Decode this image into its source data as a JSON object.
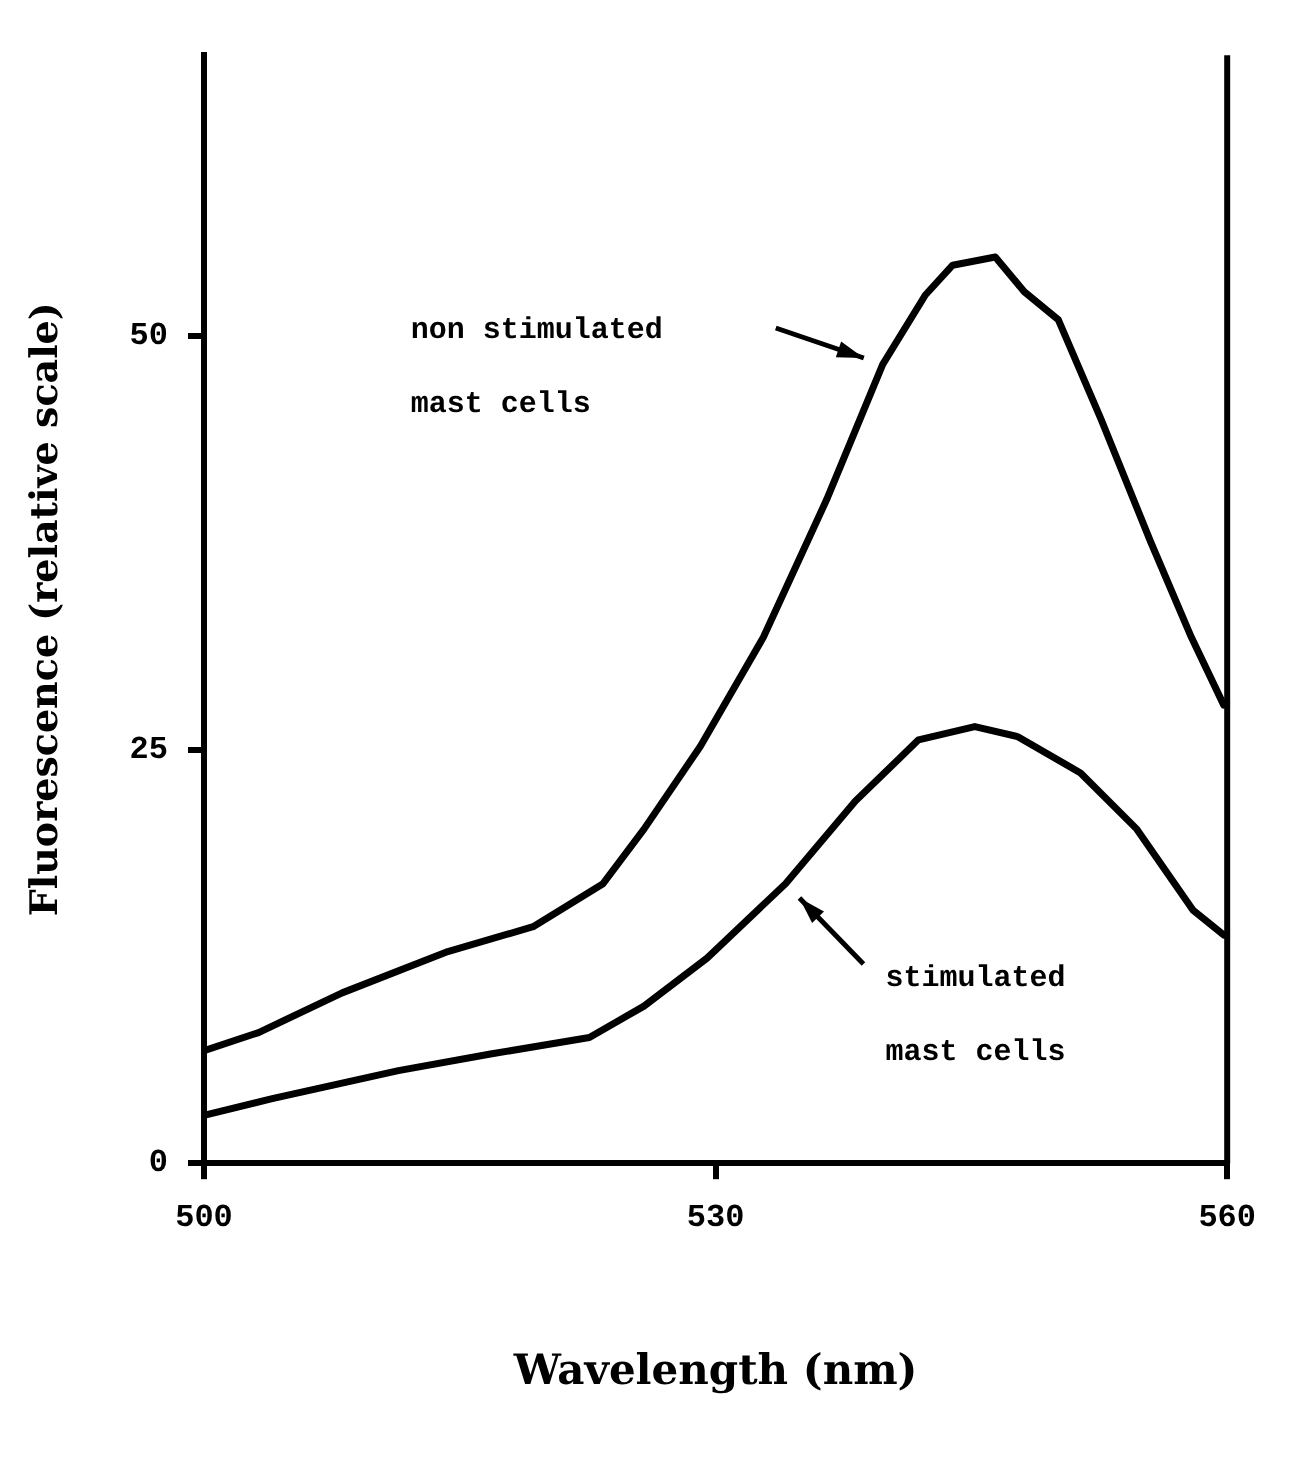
{
  "chart_data": {
    "type": "line",
    "xlabel": "Wavelength (nm)",
    "ylabel": "Fluorescence (relative scale)",
    "xlim": [
      500,
      560
    ],
    "xticks": [
      500,
      530,
      560
    ],
    "ylim": [
      0,
      67
    ],
    "yticks": [
      0,
      25,
      50
    ],
    "grid": false,
    "legend": false,
    "marker": "none",
    "line_style": "solid",
    "series": [
      {
        "name": "non stimulated mast cells",
        "color": "#000000",
        "x": [
          500,
          503.2,
          508.1,
          514.3,
          519.3,
          523.4,
          525.8,
          529.1,
          532.8,
          536.5,
          539.8,
          542.3,
          543.9,
          546.4,
          548.1,
          550.1,
          552.6,
          555.5,
          557.9,
          559.8
        ],
        "values": [
          6.8,
          7.9,
          10.3,
          12.8,
          14.3,
          16.9,
          20.2,
          25.2,
          31.8,
          40.1,
          48.3,
          52.5,
          54.3,
          54.8,
          52.7,
          51.0,
          45.0,
          37.6,
          31.8,
          27.7
        ]
      },
      {
        "name": "stimulated mast cells",
        "color": "#000000",
        "x": [
          500,
          504,
          511.4,
          516.8,
          522.6,
          525.8,
          529.5,
          534.1,
          538.2,
          541.9,
          545.2,
          547.7,
          551.4,
          554.7,
          558,
          559.8
        ],
        "values": [
          2.9,
          3.9,
          5.6,
          6.6,
          7.6,
          9.5,
          12.4,
          16.9,
          21.9,
          25.6,
          26.4,
          25.8,
          23.6,
          20.2,
          15.3,
          13.8
        ]
      }
    ]
  }
}
